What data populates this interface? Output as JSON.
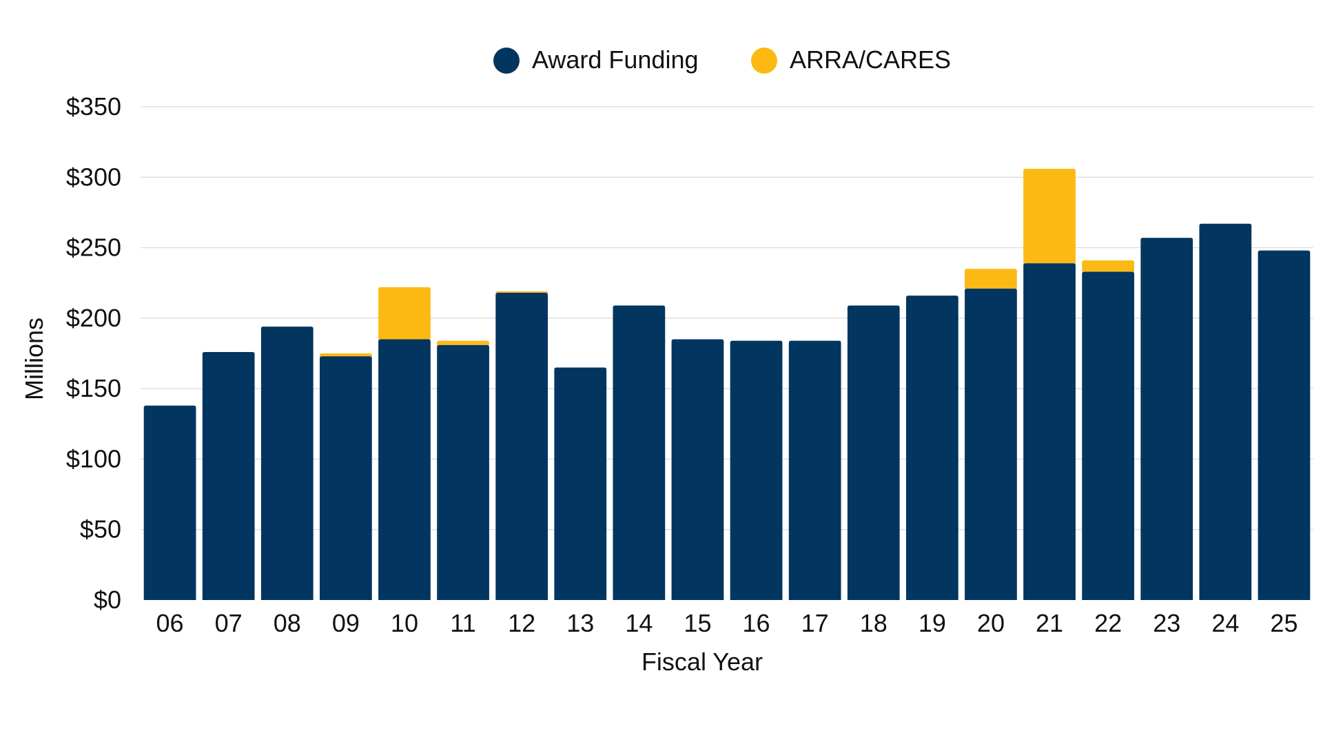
{
  "chart_data": {
    "type": "bar",
    "stacked": true,
    "xlabel": "Fiscal Year",
    "ylabel": "Millions",
    "ylim": [
      0,
      350
    ],
    "yticks": [
      0,
      50,
      100,
      150,
      200,
      250,
      300,
      350
    ],
    "ytick_labels": [
      "$0",
      "$50",
      "$100",
      "$150",
      "$200",
      "$250",
      "$300",
      "$350"
    ],
    "grid": true,
    "legend_position": "top-center",
    "categories": [
      "06",
      "07",
      "08",
      "09",
      "10",
      "11",
      "12",
      "13",
      "14",
      "15",
      "16",
      "17",
      "18",
      "19",
      "20",
      "21",
      "22",
      "23",
      "24",
      "25"
    ],
    "series": [
      {
        "name": "Award Funding",
        "color": "#02355f",
        "values": [
          138,
          176,
          194,
          173,
          185,
          181,
          218,
          165,
          209,
          185,
          184,
          184,
          209,
          216,
          221,
          239,
          233,
          257,
          267,
          248
        ]
      },
      {
        "name": "ARRA/CARES",
        "color": "#fdb913",
        "values": [
          0,
          0,
          0,
          2,
          37,
          3,
          1,
          0,
          0,
          0,
          0,
          0,
          0,
          0,
          14,
          67,
          8,
          0,
          0,
          0
        ]
      }
    ]
  }
}
